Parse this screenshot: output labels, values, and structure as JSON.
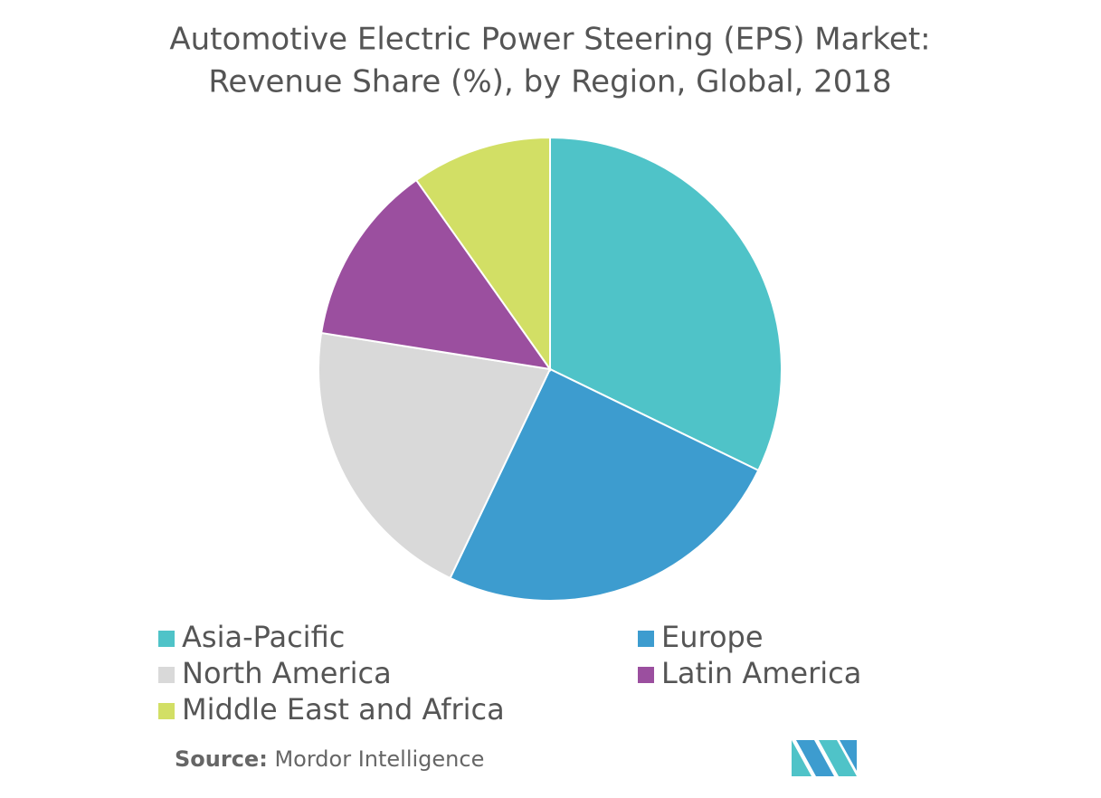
{
  "chart_data": {
    "type": "pie",
    "title": "Automotive Electric Power Steering (EPS) Market:",
    "subtitle": "Revenue Share (%), by Region, Global, 2018",
    "categories": [
      "Asia-Pacific",
      "Europe",
      "North America",
      "Latin America",
      "Middle East and Africa"
    ],
    "values": [
      32.2,
      24.9,
      20.4,
      12.7,
      9.8
    ],
    "colors": [
      "#4fc3c8",
      "#3d9ccf",
      "#d9d9d9",
      "#9b4f9f",
      "#d2df65"
    ],
    "source_label": "Source:",
    "source": "Mordor Intelligence"
  }
}
